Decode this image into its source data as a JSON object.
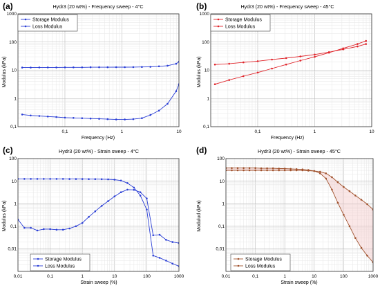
{
  "chart_data": [
    {
      "type": "line",
      "panel_label": "(a)",
      "title": "Hydr3 (20 wt%) - Frequency sweep - 4°C",
      "xlabel": "Frequency (Hz)",
      "ylabel": "Modulus (kPa)",
      "xscale": "log",
      "yscale": "log",
      "xlim": [
        0.015,
        10
      ],
      "ylim": [
        0.1,
        1000
      ],
      "xticks": [
        {
          "v": 0.1,
          "l": "0,1"
        },
        {
          "v": 1,
          "l": "1"
        },
        {
          "v": 10,
          "l": "10"
        }
      ],
      "yticks": [
        {
          "v": 0.1,
          "l": "0,1"
        },
        {
          "v": 1,
          "l": "1"
        },
        {
          "v": 10,
          "l": "10"
        },
        {
          "v": 100,
          "l": "100"
        },
        {
          "v": 1000,
          "l": "1000"
        }
      ],
      "grid": true,
      "legend_position": "top-left",
      "color": "#2b3fd6",
      "series": [
        {
          "name": "Storage Modulus",
          "x": [
            0.0178,
            0.0251,
            0.0355,
            0.0501,
            0.0708,
            0.1,
            0.141,
            0.2,
            0.282,
            0.398,
            0.562,
            0.794,
            1.12,
            1.58,
            2.24,
            3.16,
            4.47,
            6.31,
            8.91,
            10
          ],
          "y": [
            12.5,
            12.5,
            12.6,
            12.6,
            12.6,
            12.7,
            12.7,
            12.7,
            12.8,
            12.8,
            12.8,
            12.9,
            12.9,
            13,
            13.1,
            13.3,
            13.8,
            14.5,
            17,
            20
          ]
        },
        {
          "name": "Loss Modulus",
          "x": [
            0.0178,
            0.0251,
            0.0355,
            0.0501,
            0.0708,
            0.1,
            0.141,
            0.2,
            0.282,
            0.398,
            0.562,
            0.794,
            1.12,
            1.58,
            2.24,
            3.16,
            4.47,
            6.31,
            8.91,
            10
          ],
          "y": [
            0.27,
            0.25,
            0.24,
            0.23,
            0.22,
            0.21,
            0.205,
            0.2,
            0.195,
            0.19,
            0.185,
            0.18,
            0.18,
            0.185,
            0.2,
            0.26,
            0.37,
            0.65,
            1.8,
            3.2
          ]
        }
      ]
    },
    {
      "type": "line",
      "panel_label": "(b)",
      "title": "Hydr3 (20 wt%) - Frequency sweep - 45°C",
      "xlabel": "Frequency (Hz)",
      "ylabel": "Modulus (kPa)",
      "xscale": "log",
      "yscale": "log",
      "xlim": [
        0.015,
        10
      ],
      "ylim": [
        0.1,
        1000
      ],
      "xticks": [
        {
          "v": 0.1,
          "l": "0,1"
        },
        {
          "v": 1,
          "l": "1"
        },
        {
          "v": 10,
          "l": "10"
        }
      ],
      "yticks": [
        {
          "v": 0.1,
          "l": "0,1"
        },
        {
          "v": 1,
          "l": "1"
        },
        {
          "v": 10,
          "l": "10"
        },
        {
          "v": 100,
          "l": "100"
        },
        {
          "v": 1000,
          "l": "1000"
        }
      ],
      "grid": true,
      "legend_position": "top-left",
      "color": "#e0242a",
      "series": [
        {
          "name": "Storage Modulus",
          "x": [
            0.0178,
            0.0316,
            0.0562,
            0.1,
            0.178,
            0.316,
            0.562,
            1,
            1.78,
            3.16,
            5.62,
            7.94
          ],
          "y": [
            16,
            17,
            19,
            21,
            24,
            27,
            31,
            36,
            44,
            55,
            70,
            85
          ]
        },
        {
          "name": "Loss Modulus",
          "x": [
            0.0178,
            0.0316,
            0.0562,
            0.1,
            0.178,
            0.316,
            0.562,
            1,
            1.78,
            3.16,
            5.62,
            7.94
          ],
          "y": [
            3.2,
            4.5,
            6.2,
            8.3,
            11.5,
            16,
            22,
            30,
            42,
            60,
            85,
            110
          ]
        }
      ]
    },
    {
      "type": "line",
      "panel_label": "(c)",
      "title": "Hydr3 (20 wt%) - Strain sweep - 4°C",
      "xlabel": "Strain sweep (%)",
      "ylabel": "Modulus (kPa)",
      "xscale": "log",
      "yscale": "log",
      "xlim": [
        0.01,
        1000
      ],
      "ylim": [
        0.001,
        100
      ],
      "xticks": [
        {
          "v": 0.01,
          "l": "0,01"
        },
        {
          "v": 0.1,
          "l": "0,1"
        },
        {
          "v": 1,
          "l": "1"
        },
        {
          "v": 10,
          "l": "10"
        },
        {
          "v": 100,
          "l": "100"
        },
        {
          "v": 1000,
          "l": "1000"
        }
      ],
      "yticks": [
        {
          "v": 0.01,
          "l": "0,01"
        },
        {
          "v": 0.1,
          "l": "0,1"
        },
        {
          "v": 1,
          "l": "1"
        },
        {
          "v": 10,
          "l": "10"
        },
        {
          "v": 100,
          "l": "100"
        }
      ],
      "grid": true,
      "legend_position": "bottom-left",
      "color": "#2b3fd6",
      "series": [
        {
          "name": "Storage Modulus",
          "x": [
            0.01,
            0.0158,
            0.0251,
            0.0398,
            0.0631,
            0.1,
            0.158,
            0.251,
            0.398,
            0.631,
            1,
            1.58,
            2.51,
            3.98,
            6.31,
            10,
            15.8,
            25.1,
            39.8,
            63.1,
            100,
            158,
            251,
            398,
            631,
            1000
          ],
          "y": [
            12.5,
            12.5,
            12.5,
            12.5,
            12.5,
            12.5,
            12.5,
            12.5,
            12.4,
            12.4,
            12.4,
            12.3,
            12.3,
            12.2,
            12,
            11.6,
            10.6,
            8.2,
            5.2,
            2.3,
            0.55,
            0.005,
            0.004,
            0.003,
            0.0022,
            0.0017
          ]
        },
        {
          "name": "Loss Modulus",
          "x": [
            0.01,
            0.0158,
            0.0251,
            0.0398,
            0.0631,
            0.1,
            0.158,
            0.251,
            0.398,
            0.631,
            1,
            1.58,
            2.51,
            3.98,
            6.31,
            10,
            15.8,
            25.1,
            39.8,
            63.1,
            100,
            158,
            251,
            398,
            631,
            1000
          ],
          "y": [
            0.2,
            0.085,
            0.085,
            0.065,
            0.075,
            0.075,
            0.07,
            0.07,
            0.08,
            0.1,
            0.14,
            0.26,
            0.46,
            0.8,
            1.3,
            2.1,
            3.2,
            4.2,
            4.1,
            3.2,
            1.7,
            0.04,
            0.042,
            0.025,
            0.02,
            0.018
          ]
        }
      ]
    },
    {
      "type": "line",
      "panel_label": "(d)",
      "title": "Hydr3 (20 wt%) - Strain sweep - 45°C",
      "xlabel": "Strain sweep (%)",
      "ylabel": "Modulud (kPa)",
      "xscale": "log",
      "yscale": "log",
      "xlim": [
        0.01,
        1000
      ],
      "ylim": [
        0.001,
        100
      ],
      "xticks": [
        {
          "v": 0.01,
          "l": "0,01"
        },
        {
          "v": 0.1,
          "l": "0,1"
        },
        {
          "v": 1,
          "l": "1"
        },
        {
          "v": 10,
          "l": "10"
        },
        {
          "v": 100,
          "l": "100"
        },
        {
          "v": 1000,
          "l": "1000"
        }
      ],
      "yticks": [
        {
          "v": 0.01,
          "l": "0,01"
        },
        {
          "v": 0.1,
          "l": "0,1"
        },
        {
          "v": 1,
          "l": "1"
        },
        {
          "v": 10,
          "l": "10"
        },
        {
          "v": 100,
          "l": "100"
        }
      ],
      "grid": true,
      "legend_position": "bottom-left",
      "color": "#a0522d",
      "series": [
        {
          "name": "Storage Modulus",
          "x": [
            0.01,
            0.0158,
            0.0251,
            0.0398,
            0.0631,
            0.1,
            0.158,
            0.251,
            0.398,
            0.631,
            1,
            1.58,
            2.51,
            3.98,
            6.31,
            10,
            15.8,
            25.1,
            39.8,
            63.1,
            100,
            158,
            251,
            398,
            631,
            1000
          ],
          "y": [
            38,
            38,
            38,
            38,
            38,
            38,
            37,
            37,
            37,
            36,
            36,
            35,
            34,
            33,
            31,
            28,
            22,
            13,
            4.2,
            1.1,
            0.32,
            0.1,
            0.03,
            0.011,
            0.005,
            0.0025
          ]
        },
        {
          "name": "Loss Modulus",
          "x": [
            0.01,
            0.0158,
            0.0251,
            0.0398,
            0.0631,
            0.1,
            0.158,
            0.251,
            0.398,
            0.631,
            1,
            1.58,
            2.51,
            3.98,
            6.31,
            10,
            15.8,
            25.1,
            39.8,
            63.1,
            100,
            158,
            251,
            398,
            631,
            1000
          ],
          "y": [
            30,
            30,
            30,
            30,
            30,
            30,
            30,
            30,
            30,
            30,
            30,
            30,
            30,
            30,
            29,
            28,
            26,
            22,
            15,
            9,
            5.5,
            3.6,
            2.3,
            1.5,
            0.95,
            0.55
          ]
        }
      ]
    }
  ]
}
